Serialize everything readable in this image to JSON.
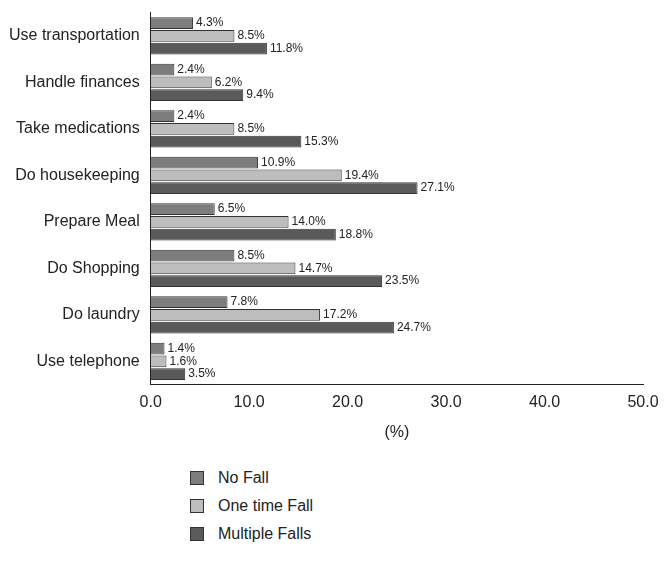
{
  "chart_data": {
    "type": "bar",
    "orientation": "horizontal",
    "categories": [
      "Use transportation",
      "Handle finances",
      "Take medications",
      "Do housekeeping",
      "Prepare Meal",
      "Do Shopping",
      "Do laundry",
      "Use telephone"
    ],
    "series": [
      {
        "name": "No Fall",
        "color": "#7d7d7d",
        "values": [
          4.3,
          2.4,
          2.4,
          10.9,
          6.5,
          8.5,
          7.8,
          1.4
        ],
        "value_labels": [
          "4.3%",
          "2.4%",
          "2.4%",
          "10.9%",
          "6.5%",
          "8.5%",
          "7.8%",
          "1.4%"
        ]
      },
      {
        "name": "One time Fall",
        "color": "#bdbdbd",
        "values": [
          8.5,
          6.2,
          8.5,
          19.4,
          14.0,
          14.7,
          17.2,
          1.6
        ],
        "value_labels": [
          "8.5%",
          "6.2%",
          "8.5%",
          "19.4%",
          "14.0%",
          "14.7%",
          "17.2%",
          "1.6%"
        ]
      },
      {
        "name": "Multiple Falls",
        "color": "#5a5a5a",
        "values": [
          11.8,
          9.4,
          15.3,
          27.1,
          18.8,
          23.5,
          24.7,
          3.5
        ],
        "value_labels": [
          "11.8%",
          "9.4%",
          "15.3%",
          "27.1%",
          "18.8%",
          "23.5%",
          "24.7%",
          "3.5%"
        ]
      }
    ],
    "x_label": "(%)",
    "xlim": [
      0,
      50
    ],
    "xticks": [
      {
        "value": 0,
        "label": "0.0"
      },
      {
        "value": 10,
        "label": "10.0"
      },
      {
        "value": 20,
        "label": "20.0"
      },
      {
        "value": 30,
        "label": "30.0"
      },
      {
        "value": 40,
        "label": "40.0"
      },
      {
        "value": 50,
        "label": "50.0"
      }
    ],
    "grid": false,
    "data_labels": true,
    "legend": "bottom"
  }
}
